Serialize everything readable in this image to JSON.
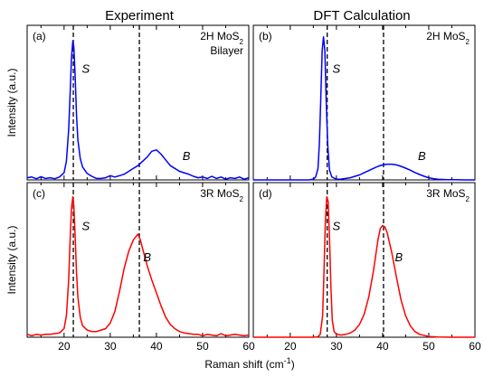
{
  "column_titles": [
    "Experiment",
    "DFT Calculation"
  ],
  "chart_data": [
    {
      "type": "line",
      "panel": "(a)",
      "sample": [
        "2H MoS",
        "2",
        "Bilayer"
      ],
      "ylabel": "Intensity (a.u.)",
      "xlim": [
        12,
        60
      ],
      "ylim": [
        0,
        1.08
      ],
      "y_ticks_shown": false,
      "color": "#0000ff",
      "dashed_x": [
        22,
        36.3
      ],
      "peak_labels": [
        {
          "text": "S",
          "x": 24.7,
          "y": 0.75
        },
        {
          "text": "B",
          "x": 46.5,
          "y": 0.14
        }
      ],
      "series": [
        {
          "x": [
            12,
            13,
            14,
            15,
            16,
            17,
            18,
            19,
            20,
            20.5,
            21,
            21.3,
            21.6,
            21.9,
            22.1,
            22.4,
            22.7,
            23,
            23.5,
            24,
            25,
            26,
            27,
            28,
            29,
            30,
            31,
            32,
            33,
            34,
            35,
            36,
            37,
            38,
            39,
            40,
            41,
            42,
            43,
            44,
            45,
            46,
            47,
            48,
            49,
            50,
            51,
            52,
            53,
            54,
            55,
            56,
            57,
            58,
            59,
            60
          ],
          "y": [
            0.015,
            0.02,
            0.008,
            0.022,
            0.01,
            0.015,
            0.008,
            0.02,
            0.05,
            0.13,
            0.35,
            0.6,
            0.85,
            0.97,
            0.93,
            0.72,
            0.45,
            0.28,
            0.15,
            0.09,
            0.045,
            0.025,
            0.01,
            0.01,
            0.015,
            0.03,
            0.02,
            0.03,
            0.04,
            0.06,
            0.08,
            0.1,
            0.13,
            0.16,
            0.2,
            0.21,
            0.18,
            0.14,
            0.1,
            0.08,
            0.06,
            0.05,
            0.04,
            0.025,
            0.015,
            0.02,
            0.01,
            0.025,
            0.01,
            0.02,
            0.005,
            0.015,
            0.01,
            0.02,
            0.005,
            0.015
          ]
        }
      ]
    },
    {
      "type": "line",
      "panel": "(b)",
      "sample": [
        "2H MoS",
        "2",
        ""
      ],
      "xlim": [
        12,
        60
      ],
      "ylim": [
        0,
        1.08
      ],
      "y_ticks_shown": false,
      "color": "#0000ff",
      "dashed_x": [
        28,
        40.2
      ],
      "peak_labels": [
        {
          "text": "S",
          "x": 30,
          "y": 0.75
        },
        {
          "text": "B",
          "x": 48.5,
          "y": 0.14
        }
      ],
      "series": [
        {
          "x": [
            12,
            20,
            24,
            25,
            25.5,
            26,
            26.3,
            26.6,
            26.9,
            27.2,
            27.5,
            27.8,
            28.1,
            28.5,
            29,
            30,
            31,
            32,
            33,
            34,
            35,
            36,
            37,
            38,
            39,
            40,
            41,
            42,
            43,
            44,
            45,
            46,
            47,
            48,
            49,
            50,
            51,
            52,
            53,
            54,
            56,
            58,
            60
          ],
          "y": [
            0,
            0,
            0,
            0.005,
            0.02,
            0.08,
            0.25,
            0.55,
            0.9,
            1.0,
            0.9,
            0.55,
            0.25,
            0.07,
            0.02,
            0.005,
            0.006,
            0.01,
            0.015,
            0.025,
            0.035,
            0.05,
            0.065,
            0.08,
            0.095,
            0.105,
            0.11,
            0.11,
            0.105,
            0.095,
            0.082,
            0.068,
            0.052,
            0.038,
            0.025,
            0.015,
            0.009,
            0.005,
            0.003,
            0.002,
            0.001,
            0,
            0
          ]
        }
      ]
    },
    {
      "type": "line",
      "panel": "(c)",
      "sample": [
        "3R MoS",
        "2",
        ""
      ],
      "ylabel": "Intensity (a.u.)",
      "xlim": [
        12,
        60
      ],
      "ylim": [
        0,
        1.08
      ],
      "y_ticks_shown": false,
      "color": "#ff0000",
      "dashed_x": [
        22,
        36.3
      ],
      "peak_labels": [
        {
          "text": "S",
          "x": 24.7,
          "y": 0.75
        },
        {
          "text": "B",
          "x": 38,
          "y": 0.53
        }
      ],
      "series": [
        {
          "x": [
            12,
            13,
            14,
            15,
            16,
            17,
            18,
            19,
            20,
            20.5,
            21,
            21.3,
            21.6,
            21.9,
            22.1,
            22.4,
            22.7,
            23,
            23.5,
            24,
            25,
            26,
            27,
            28,
            29,
            30,
            31,
            32,
            33,
            34,
            35,
            35.5,
            36,
            36.5,
            37,
            38,
            39,
            40,
            41,
            42,
            43,
            44,
            45,
            46,
            47,
            48,
            49,
            50,
            51,
            52,
            53,
            54,
            55,
            56,
            57,
            58,
            59,
            60
          ],
          "y": [
            0.02,
            0.01,
            0.02,
            0.015,
            0.02,
            0.02,
            0.025,
            0.03,
            0.06,
            0.15,
            0.4,
            0.68,
            0.9,
            0.98,
            0.92,
            0.7,
            0.45,
            0.28,
            0.14,
            0.08,
            0.05,
            0.04,
            0.04,
            0.05,
            0.06,
            0.1,
            0.18,
            0.32,
            0.48,
            0.6,
            0.68,
            0.7,
            0.72,
            0.68,
            0.62,
            0.5,
            0.4,
            0.31,
            0.22,
            0.14,
            0.09,
            0.06,
            0.04,
            0.03,
            0.025,
            0.02,
            0.02,
            0.01,
            0.02,
            0.015,
            0.01,
            0.025,
            0.01,
            0.015,
            0.02,
            0.015,
            0.01,
            0.015
          ]
        }
      ]
    },
    {
      "type": "line",
      "panel": "(d)",
      "sample": [
        "3R MoS",
        "2",
        ""
      ],
      "xlim": [
        12,
        60
      ],
      "ylim": [
        0,
        1.08
      ],
      "y_ticks_shown": false,
      "color": "#ff0000",
      "dashed_x": [
        28,
        40.2
      ],
      "peak_labels": [
        {
          "text": "S",
          "x": 30,
          "y": 0.75
        },
        {
          "text": "B",
          "x": 43.5,
          "y": 0.53
        }
      ],
      "series": [
        {
          "x": [
            12,
            20,
            25,
            26,
            26.5,
            27,
            27.3,
            27.6,
            27.9,
            28.2,
            28.5,
            28.8,
            29.1,
            29.5,
            30,
            31,
            32,
            33,
            34,
            35,
            36,
            37,
            38,
            39,
            39.5,
            40,
            40.5,
            41,
            42,
            43,
            44,
            45,
            46,
            47,
            48,
            50,
            52,
            55,
            60
          ],
          "y": [
            0,
            0,
            0,
            0.003,
            0.02,
            0.15,
            0.45,
            0.8,
            0.98,
            0.95,
            0.7,
            0.35,
            0.12,
            0.04,
            0.02,
            0.015,
            0.02,
            0.03,
            0.05,
            0.09,
            0.16,
            0.28,
            0.46,
            0.68,
            0.76,
            0.78,
            0.77,
            0.73,
            0.59,
            0.42,
            0.26,
            0.15,
            0.08,
            0.04,
            0.02,
            0.005,
            0.002,
            0,
            0
          ]
        }
      ]
    }
  ],
  "x_axis": {
    "ticks": [
      20,
      30,
      40,
      50,
      60
    ],
    "label_text": "Raman shift (cm",
    "label_sup": "-1",
    "label_close": ")"
  }
}
